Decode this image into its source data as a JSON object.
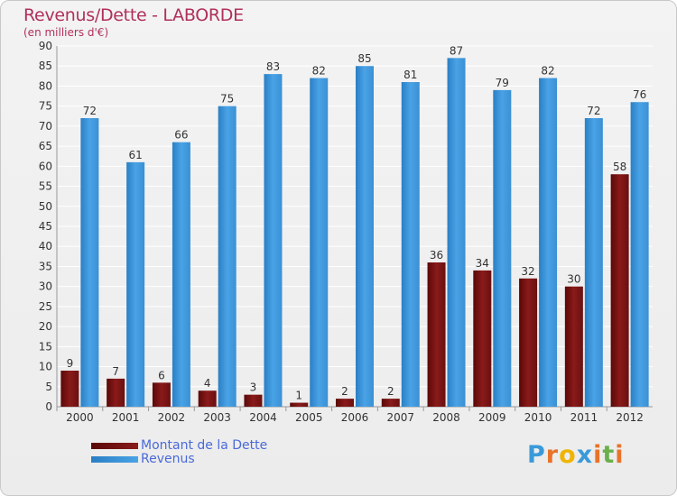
{
  "title": "Revenus/Dette - LABORDE",
  "subtitle": "(en milliers d'€)",
  "legend": {
    "dette_label": "Montant de la Dette",
    "revenus_label": "Revenus"
  },
  "logo": {
    "text": "Proxiti",
    "letter_colors": [
      "#3a9ad9",
      "#e8732a",
      "#f0b400",
      "#3a9ad9",
      "#e8732a",
      "#6ab04c",
      "#e8732a"
    ]
  },
  "colors": {
    "dette": "#8a1a1a",
    "revenus": "#4aa3e6",
    "axis_text": "#333333",
    "grid": "#ffffff"
  },
  "chart_data": {
    "type": "bar",
    "categories": [
      "2000",
      "2001",
      "2002",
      "2003",
      "2004",
      "2005",
      "2006",
      "2007",
      "2008",
      "2009",
      "2010",
      "2011",
      "2012"
    ],
    "series": [
      {
        "name": "Montant de la Dette",
        "values": [
          9,
          7,
          6,
          4,
          3,
          1,
          2,
          2,
          36,
          34,
          32,
          30,
          58
        ]
      },
      {
        "name": "Revenus",
        "values": [
          72,
          61,
          66,
          75,
          83,
          82,
          85,
          81,
          87,
          79,
          82,
          72,
          76
        ]
      }
    ],
    "ylim": [
      0,
      90
    ],
    "yticks": [
      "0",
      "5",
      "10",
      "15",
      "20",
      "25",
      "30",
      "35",
      "40",
      "45",
      "50",
      "55",
      "60",
      "65",
      "70",
      "75",
      "80",
      "85",
      "90"
    ],
    "grid": true,
    "legend_position": "bottom-left"
  }
}
